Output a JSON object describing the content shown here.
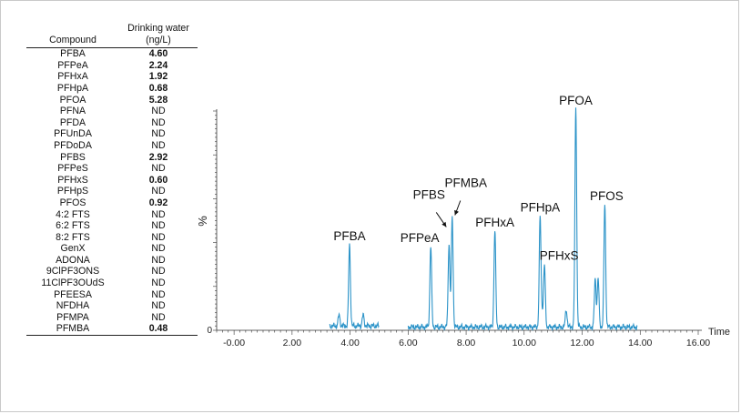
{
  "table": {
    "header_compound": "Compound",
    "header_value_line1": "Drinking water",
    "header_value_line2": "(ng/L)",
    "rows": [
      {
        "compound": "PFBA",
        "value": "4.60",
        "bold": true
      },
      {
        "compound": "PFPeA",
        "value": "2.24",
        "bold": true
      },
      {
        "compound": "PFHxA",
        "value": "1.92",
        "bold": true
      },
      {
        "compound": "PFHpA",
        "value": "0.68",
        "bold": true
      },
      {
        "compound": "PFOA",
        "value": "5.28",
        "bold": true
      },
      {
        "compound": "PFNA",
        "value": "ND",
        "bold": false
      },
      {
        "compound": "PFDA",
        "value": "ND",
        "bold": false
      },
      {
        "compound": "PFUnDA",
        "value": "ND",
        "bold": false
      },
      {
        "compound": "PFDoDA",
        "value": "ND",
        "bold": false
      },
      {
        "compound": "PFBS",
        "value": "2.92",
        "bold": true
      },
      {
        "compound": "PFPeS",
        "value": "ND",
        "bold": false
      },
      {
        "compound": "PFHxS",
        "value": "0.60",
        "bold": true
      },
      {
        "compound": "PFHpS",
        "value": "ND",
        "bold": false
      },
      {
        "compound": "PFOS",
        "value": "0.92",
        "bold": true
      },
      {
        "compound": "4:2 FTS",
        "value": "ND",
        "bold": false
      },
      {
        "compound": "6:2 FTS",
        "value": "ND",
        "bold": false
      },
      {
        "compound": "8:2 FTS",
        "value": "ND",
        "bold": false
      },
      {
        "compound": "GenX",
        "value": "ND",
        "bold": false
      },
      {
        "compound": "ADONA",
        "value": "ND",
        "bold": false
      },
      {
        "compound": "9ClPF3ONS",
        "value": "ND",
        "bold": false
      },
      {
        "compound": "11ClPF3OUdS",
        "value": "ND",
        "bold": false
      },
      {
        "compound": "PFEESA",
        "value": "ND",
        "bold": false
      },
      {
        "compound": "NFDHA",
        "value": "ND",
        "bold": false
      },
      {
        "compound": "PFMPA",
        "value": "ND",
        "bold": false
      },
      {
        "compound": "PFMBA",
        "value": "0.48",
        "bold": true
      }
    ]
  },
  "chart_data": {
    "type": "line",
    "title": "",
    "xlabel": "Time",
    "ylabel": "%",
    "xlim": [
      -0.6,
      16.0
    ],
    "ylim": [
      0,
      100
    ],
    "x_ticks": [
      -0.0,
      2.0,
      4.0,
      6.0,
      8.0,
      10.0,
      12.0,
      14.0,
      16.0
    ],
    "x_tick_labels": [
      "-0.00",
      "2.00",
      "4.00",
      "6.00",
      "8.00",
      "10.00",
      "12.00",
      "14.00",
      "16.00"
    ],
    "y_tick_labels": [
      "0"
    ],
    "line_color": "#2b93c8",
    "segments": [
      {
        "x_start": 3.3,
        "x_end": 5.0,
        "baseline": 2.0
      },
      {
        "x_start": 6.0,
        "x_end": 13.9,
        "baseline": 1.5
      }
    ],
    "peaks": [
      {
        "label": "PFBA",
        "rt": 3.98,
        "height": 37
      },
      {
        "label": "PFPeA",
        "rt": 6.78,
        "height": 37
      },
      {
        "label": "PFBS",
        "rt": 7.41,
        "height": 38
      },
      {
        "label": "PFMBA",
        "rt": 7.52,
        "height": 50
      },
      {
        "label": "PFHxA",
        "rt": 8.99,
        "height": 44
      },
      {
        "label": "PFHpA",
        "rt": 10.55,
        "height": 50
      },
      {
        "label": "PFHxS",
        "rt": 10.7,
        "height": 28
      },
      {
        "label": "PFOA",
        "rt": 11.78,
        "height": 100
      },
      {
        "label": "PFOS",
        "rt": 12.78,
        "height": 56
      }
    ],
    "minor_peaks": [
      {
        "rt": 3.62,
        "height": 5
      },
      {
        "rt": 4.45,
        "height": 5
      },
      {
        "rt": 11.45,
        "height": 8
      },
      {
        "rt": 12.45,
        "height": 22
      },
      {
        "rt": 12.55,
        "height": 22
      },
      {
        "rt": 10.62,
        "height": 6
      }
    ]
  }
}
